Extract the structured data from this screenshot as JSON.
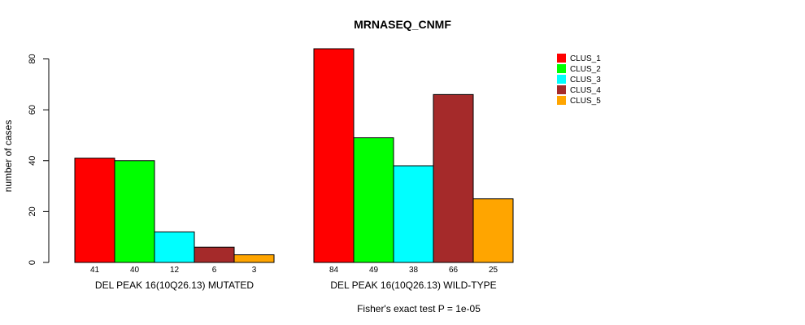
{
  "chart_data": {
    "type": "bar",
    "title": "MRNASEQ_CNMF",
    "ylabel": "number of cases",
    "ylim": [
      0,
      84
    ],
    "yticks": [
      0,
      20,
      40,
      60,
      80
    ],
    "footer": "Fisher's exact test P = 1e-05",
    "groups": [
      "DEL PEAK 16(10Q26.13) MUTATED",
      "DEL PEAK 16(10Q26.13) WILD-TYPE"
    ],
    "series": [
      {
        "name": "CLUS_1",
        "color": "#ff0000",
        "values": [
          41,
          84
        ]
      },
      {
        "name": "CLUS_2",
        "color": "#00ff00",
        "values": [
          40,
          49
        ]
      },
      {
        "name": "CLUS_3",
        "color": "#00ffff",
        "values": [
          12,
          38
        ]
      },
      {
        "name": "CLUS_4",
        "color": "#a52a2a",
        "values": [
          6,
          66
        ]
      },
      {
        "name": "CLUS_5",
        "color": "#ffa500",
        "values": [
          3,
          25
        ]
      }
    ],
    "legend_position": "top-right"
  }
}
